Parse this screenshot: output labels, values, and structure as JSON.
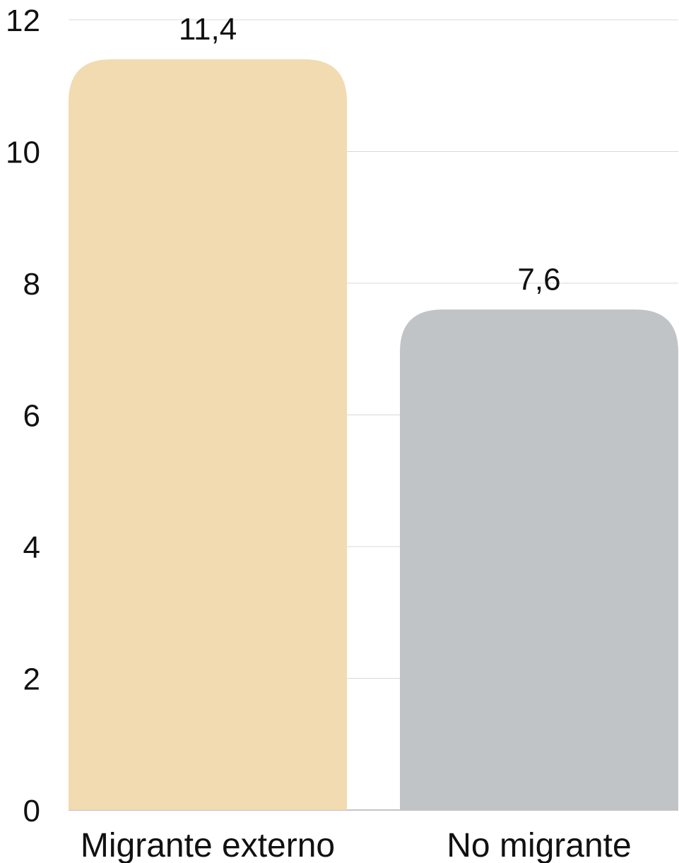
{
  "chart_data": {
    "type": "bar",
    "categories": [
      "Migrante externo",
      "No migrante"
    ],
    "values": [
      11.4,
      7.6
    ],
    "value_labels": [
      "11,4",
      "7,6"
    ],
    "colors": [
      "#f2dbb0",
      "#c1c4c7"
    ],
    "ylim": [
      0,
      12
    ],
    "yticks": [
      0,
      2,
      4,
      6,
      8,
      10,
      12
    ],
    "grid": true
  }
}
